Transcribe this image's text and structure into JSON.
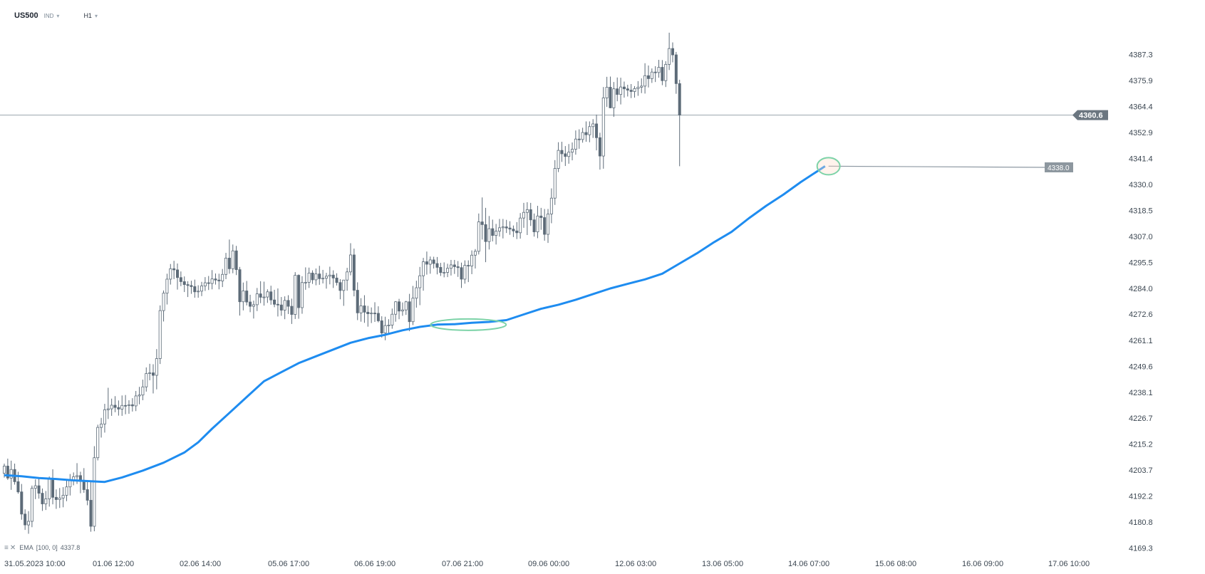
{
  "header": {
    "symbol": "US500",
    "tag": "IND",
    "timeframe": "H1"
  },
  "indicator": {
    "name": "EMA",
    "params": "[100, 0]",
    "value": "4337.8"
  },
  "price_labels": {
    "current": "4360.6",
    "ema_marker": "4338.0"
  },
  "colors": {
    "ema": "#1e8cf0",
    "candle": "#5d6b78",
    "level_line": "#9aa4ad",
    "current_label_bg": "#6b7680",
    "ema_label_bg": "#8d979f",
    "ellipse": "#7dd3a8"
  },
  "chart_data": {
    "type": "candlestick",
    "symbol": "US500",
    "timeframe": "H1",
    "ylim": [
      4166,
      4402
    ],
    "y_ticks": [
      "4387.3",
      "4375.9",
      "4364.4",
      "4352.9",
      "4341.4",
      "4330.0",
      "4318.5",
      "4307.0",
      "4295.5",
      "4284.0",
      "4272.6",
      "4261.1",
      "4249.6",
      "4238.1",
      "4226.7",
      "4215.2",
      "4203.7",
      "4192.2",
      "4180.8",
      "4169.3"
    ],
    "x_ticks": [
      "31.05.2023 10:00",
      "01.06 12:00",
      "02.06 14:00",
      "05.06 17:00",
      "06.06 19:00",
      "07.06 21:00",
      "09.06 00:00",
      "12.06 03:00",
      "13.06 05:00",
      "14.06 07:00",
      "15.06 08:00",
      "16.06 09:00",
      "17.06 10:00"
    ],
    "horizontal_level": 4360.6,
    "ema": {
      "name": "EMA [100, 0]",
      "value": 4337.8,
      "points": [
        [
          0,
          4201.5
        ],
        [
          5,
          4201
        ],
        [
          10,
          4200.2
        ],
        [
          15,
          4199.8
        ],
        [
          20,
          4199.2
        ],
        [
          25,
          4198.8
        ],
        [
          29,
          4198.5
        ],
        [
          34,
          4200.5
        ],
        [
          40,
          4203.5
        ],
        [
          46,
          4207
        ],
        [
          52,
          4211.5
        ],
        [
          56,
          4216
        ],
        [
          60,
          4222
        ],
        [
          65,
          4229
        ],
        [
          70,
          4236
        ],
        [
          75,
          4243
        ],
        [
          80,
          4247
        ],
        [
          85,
          4251
        ],
        [
          90,
          4254
        ],
        [
          95,
          4257
        ],
        [
          100,
          4260
        ],
        [
          105,
          4262
        ],
        [
          110,
          4263.5
        ],
        [
          115,
          4265.5
        ],
        [
          120,
          4267
        ],
        [
          125,
          4268
        ],
        [
          130,
          4268.2
        ],
        [
          135,
          4268.8
        ],
        [
          140,
          4269.2
        ],
        [
          145,
          4270
        ],
        [
          150,
          4272.5
        ],
        [
          155,
          4275
        ],
        [
          160,
          4276.8
        ],
        [
          165,
          4279
        ],
        [
          170,
          4281.5
        ],
        [
          175,
          4284
        ],
        [
          180,
          4286
        ],
        [
          185,
          4288
        ],
        [
          190,
          4290.5
        ],
        [
          195,
          4295
        ],
        [
          200,
          4299.5
        ],
        [
          205,
          4304.5
        ],
        [
          210,
          4309
        ],
        [
          215,
          4315
        ],
        [
          220,
          4320.5
        ],
        [
          225,
          4325.5
        ],
        [
          230,
          4331
        ],
        [
          235,
          4336
        ],
        [
          237,
          4338
        ]
      ]
    },
    "annotations": [
      {
        "type": "ellipse",
        "bar_index": 134,
        "price": 4268
      },
      {
        "type": "ellipse",
        "bar_index": 238,
        "price": 4338
      },
      {
        "type": "ray",
        "start_bar": 238,
        "start_price": 4338,
        "end_price": 4337.5
      }
    ],
    "candles": [
      [
        4202.3,
        4206.6,
        4200.4,
        4205.5
      ],
      [
        4205.5,
        4208.8,
        4199.4,
        4200.2
      ],
      [
        4200.2,
        4207.9,
        4195.0,
        4204.0
      ],
      [
        4204.0,
        4206.6,
        4197.3,
        4198.6
      ],
      [
        4198.6,
        4203.0,
        4193.3,
        4194.1
      ],
      [
        4194.1,
        4197.6,
        4181.8,
        4184.3
      ],
      [
        4184.3,
        4186.4,
        4177.3,
        4179.5
      ],
      [
        4179.5,
        4185.6,
        4175.6,
        4181.1
      ],
      [
        4181.1,
        4196.9,
        4178.5,
        4195.7
      ],
      [
        4195.7,
        4199.6,
        4190.9,
        4196.8
      ],
      [
        4196.8,
        4200.6,
        4191.1,
        4193.5
      ],
      [
        4193.5,
        4195.6,
        4185.7,
        4188.8
      ],
      [
        4188.8,
        4194.5,
        4186.1,
        4191.0
      ],
      [
        4191.0,
        4200.9,
        4187.6,
        4200.0
      ],
      [
        4200.0,
        4204.1,
        4188.6,
        4191.7
      ],
      [
        4191.7,
        4195.2,
        4186.6,
        4190.7
      ],
      [
        4190.7,
        4195.8,
        4187.0,
        4191.4
      ],
      [
        4191.4,
        4196.2,
        4187.3,
        4192.6
      ],
      [
        4192.6,
        4199.7,
        4190.0,
        4196.3
      ],
      [
        4196.3,
        4202.0,
        4192.5,
        4199.1
      ],
      [
        4199.1,
        4202.7,
        4197.0,
        4200.8
      ],
      [
        4200.8,
        4206.8,
        4197.6,
        4201.3
      ],
      [
        4201.3,
        4203.0,
        4193.5,
        4198.7
      ],
      [
        4198.7,
        4204.6,
        4193.7,
        4195.1
      ],
      [
        4195.1,
        4198.6,
        4188.2,
        4190.4
      ],
      [
        4190.4,
        4198.4,
        4176.5,
        4178.9
      ],
      [
        4178.9,
        4214.3,
        4176.7,
        4209.2
      ],
      [
        4209.2,
        4223.8,
        4208.0,
        4222.6
      ],
      [
        4222.6,
        4226.8,
        4218.1,
        4224.1
      ],
      [
        4224.1,
        4233.0,
        4220.3,
        4230.4
      ],
      [
        4230.4,
        4240.1,
        4226.3,
        4230.8
      ],
      [
        4230.8,
        4235.3,
        4227.7,
        4232.4
      ],
      [
        4232.4,
        4236.4,
        4229.3,
        4231.4
      ],
      [
        4231.4,
        4234.5,
        4227.8,
        4230.7
      ],
      [
        4230.7,
        4236.7,
        4227.7,
        4232.3
      ],
      [
        4232.3,
        4236.9,
        4228.4,
        4232.2
      ],
      [
        4232.2,
        4234.6,
        4228.6,
        4232.6
      ],
      [
        4232.6,
        4235.5,
        4229.6,
        4232.1
      ],
      [
        4232.1,
        4238.7,
        4229.8,
        4236.5
      ],
      [
        4236.5,
        4240.5,
        4232.8,
        4236.9
      ],
      [
        4236.9,
        4243.7,
        4234.6,
        4240.5
      ],
      [
        4240.5,
        4249.1,
        4238.4,
        4246.4
      ],
      [
        4246.4,
        4250.7,
        4243.4,
        4246.7
      ],
      [
        4246.7,
        4250.5,
        4237.6,
        4245.6
      ],
      [
        4245.6,
        4257.2,
        4239.4,
        4253.0
      ],
      [
        4253.0,
        4276.5,
        4250.6,
        4274.2
      ],
      [
        4274.2,
        4283.1,
        4269.4,
        4281.9
      ],
      [
        4281.9,
        4290.5,
        4276.9,
        4288.1
      ],
      [
        4288.1,
        4294.8,
        4285.7,
        4292.7
      ],
      [
        4292.7,
        4296.2,
        4288.1,
        4292.2
      ],
      [
        4292.2,
        4295.0,
        4283.5,
        4288.8
      ],
      [
        4288.8,
        4291.5,
        4285.0,
        4287.0
      ],
      [
        4287.0,
        4289.3,
        4282.4,
        4285.7
      ],
      [
        4285.7,
        4287.2,
        4280.2,
        4285.3
      ],
      [
        4285.3,
        4287.4,
        4281.6,
        4284.8
      ],
      [
        4284.8,
        4287.9,
        4279.9,
        4282.5
      ],
      [
        4282.5,
        4285.4,
        4279.9,
        4282.8
      ],
      [
        4282.8,
        4286.9,
        4280.6,
        4285.1
      ],
      [
        4285.1,
        4289.0,
        4282.9,
        4286.5
      ],
      [
        4286.5,
        4289.5,
        4283.3,
        4286.2
      ],
      [
        4286.2,
        4292.1,
        4283.6,
        4288.2
      ],
      [
        4288.2,
        4290.6,
        4285.7,
        4287.7
      ],
      [
        4287.7,
        4290.5,
        4283.6,
        4287.3
      ],
      [
        4287.3,
        4292.6,
        4284.6,
        4290.2
      ],
      [
        4290.2,
        4299.7,
        4288.1,
        4297.4
      ],
      [
        4297.4,
        4305.6,
        4290.5,
        4292.7
      ],
      [
        4292.7,
        4303.4,
        4290.7,
        4300.6
      ],
      [
        4300.6,
        4302.8,
        4289.9,
        4292.3
      ],
      [
        4292.3,
        4293.5,
        4272.0,
        4278.1
      ],
      [
        4278.1,
        4286.6,
        4274.3,
        4282.9
      ],
      [
        4282.9,
        4287.3,
        4276.5,
        4278.0
      ],
      [
        4278.0,
        4281.2,
        4273.5,
        4276.1
      ],
      [
        4276.1,
        4278.6,
        4270.7,
        4276.8
      ],
      [
        4276.8,
        4284.2,
        4274.0,
        4281.6
      ],
      [
        4281.6,
        4287.2,
        4277.5,
        4280.1
      ],
      [
        4280.1,
        4287.0,
        4276.4,
        4280.2
      ],
      [
        4280.2,
        4283.6,
        4277.6,
        4282.5
      ],
      [
        4282.5,
        4285.2,
        4276.8,
        4278.9
      ],
      [
        4278.9,
        4283.4,
        4275.7,
        4277.0
      ],
      [
        4277.0,
        4284.0,
        4271.6,
        4276.7
      ],
      [
        4276.7,
        4280.2,
        4271.9,
        4274.4
      ],
      [
        4274.4,
        4280.5,
        4270.4,
        4278.7
      ],
      [
        4278.7,
        4281.0,
        4272.7,
        4276.1
      ],
      [
        4276.1,
        4279.5,
        4268.3,
        4272.5
      ],
      [
        4272.5,
        4291.2,
        4270.5,
        4289.8
      ],
      [
        4289.8,
        4290.2,
        4270.6,
        4275.5
      ],
      [
        4275.5,
        4289.4,
        4272.8,
        4286.6
      ],
      [
        4286.6,
        4293.3,
        4283.4,
        4286.7
      ],
      [
        4286.7,
        4293.2,
        4284.2,
        4290.8
      ],
      [
        4290.8,
        4292.0,
        4286.0,
        4287.8
      ],
      [
        4287.8,
        4292.8,
        4285.4,
        4290.4
      ],
      [
        4290.4,
        4294.0,
        4285.6,
        4288.3
      ],
      [
        4288.3,
        4292.2,
        4286.2,
        4288.5
      ],
      [
        4288.5,
        4290.9,
        4283.9,
        4289.4
      ],
      [
        4289.4,
        4293.6,
        4285.8,
        4289.9
      ],
      [
        4289.9,
        4292.0,
        4284.2,
        4288.6
      ],
      [
        4288.6,
        4290.7,
        4285.3,
        4286.6
      ],
      [
        4286.6,
        4288.1,
        4279.2,
        4283.1
      ],
      [
        4283.1,
        4286.5,
        4276.3,
        4287.7
      ],
      [
        4287.7,
        4293.1,
        4283.0,
        4291.3
      ],
      [
        4291.3,
        4304.0,
        4289.8,
        4298.8
      ],
      [
        4298.8,
        4301.6,
        4280.5,
        4283.2
      ],
      [
        4283.2,
        4286.7,
        4270.0,
        4273.2
      ],
      [
        4273.2,
        4279.7,
        4269.3,
        4276.3
      ],
      [
        4276.3,
        4281.0,
        4268.8,
        4273.5
      ],
      [
        4273.5,
        4276.3,
        4267.1,
        4272.8
      ],
      [
        4272.8,
        4275.6,
        4268.7,
        4273.1
      ],
      [
        4273.1,
        4277.9,
        4269.2,
        4273.0
      ],
      [
        4273.0,
        4276.1,
        4269.0,
        4269.7
      ],
      [
        4269.7,
        4271.7,
        4262.3,
        4264.3
      ],
      [
        4264.3,
        4271.5,
        4261.1,
        4267.6
      ],
      [
        4267.6,
        4270.4,
        4263.6,
        4267.8
      ],
      [
        4267.8,
        4275.1,
        4266.2,
        4272.6
      ],
      [
        4272.6,
        4278.4,
        4269.3,
        4278.1
      ],
      [
        4278.1,
        4279.4,
        4270.4,
        4274.0
      ],
      [
        4274.0,
        4277.8,
        4271.9,
        4274.5
      ],
      [
        4274.5,
        4278.5,
        4272.3,
        4278.1
      ],
      [
        4278.1,
        4281.6,
        4265.1,
        4269.3
      ],
      [
        4269.3,
        4285.1,
        4267.8,
        4279.7
      ],
      [
        4279.7,
        4287.4,
        4275.5,
        4284.3
      ],
      [
        4284.3,
        4293.5,
        4276.6,
        4289.6
      ],
      [
        4289.6,
        4297.5,
        4283.0,
        4295.8
      ],
      [
        4295.8,
        4300.3,
        4290.1,
        4294.7
      ],
      [
        4294.7,
        4298.1,
        4290.5,
        4296.6
      ],
      [
        4296.6,
        4298.0,
        4292.8,
        4295.0
      ],
      [
        4295.0,
        4297.9,
        4290.2,
        4293.3
      ],
      [
        4293.3,
        4295.3,
        4289.5,
        4291.0
      ],
      [
        4291.0,
        4295.5,
        4288.9,
        4291.1
      ],
      [
        4291.1,
        4294.9,
        4289.0,
        4292.9
      ],
      [
        4292.9,
        4296.6,
        4289.7,
        4294.4
      ],
      [
        4294.4,
        4296.6,
        4290.4,
        4293.6
      ],
      [
        4293.6,
        4296.1,
        4289.1,
        4293.2
      ],
      [
        4293.2,
        4295.4,
        4284.2,
        4288.1
      ],
      [
        4288.1,
        4296.4,
        4286.1,
        4294.2
      ],
      [
        4294.2,
        4296.4,
        4286.8,
        4293.9
      ],
      [
        4293.9,
        4300.8,
        4290.3,
        4298.7
      ],
      [
        4298.7,
        4301.4,
        4292.8,
        4300.4
      ],
      [
        4300.4,
        4317.1,
        4299.0,
        4313.4
      ],
      [
        4313.4,
        4324.2,
        4305.6,
        4312.2
      ],
      [
        4312.2,
        4319.6,
        4295.6,
        4304.7
      ],
      [
        4304.7,
        4316.0,
        4301.2,
        4310.4
      ],
      [
        4310.4,
        4314.4,
        4304.8,
        4307.4
      ],
      [
        4307.4,
        4312.5,
        4303.4,
        4309.3
      ],
      [
        4309.3,
        4314.7,
        4306.9,
        4310.8
      ],
      [
        4310.8,
        4314.7,
        4306.1,
        4311.2
      ],
      [
        4311.2,
        4314.3,
        4308.5,
        4310.7
      ],
      [
        4310.7,
        4313.7,
        4307.7,
        4310.2
      ],
      [
        4310.2,
        4311.8,
        4306.7,
        4309.4
      ],
      [
        4309.4,
        4313.3,
        4305.8,
        4308.6
      ],
      [
        4308.6,
        4317.3,
        4306.0,
        4315.1
      ],
      [
        4315.1,
        4321.8,
        4310.8,
        4317.6
      ],
      [
        4317.6,
        4322.1,
        4307.6,
        4318.8
      ],
      [
        4318.8,
        4321.8,
        4311.6,
        4314.3
      ],
      [
        4314.3,
        4317.1,
        4306.9,
        4309.0
      ],
      [
        4309.0,
        4320.5,
        4306.2,
        4316.0
      ],
      [
        4316.0,
        4319.6,
        4309.9,
        4315.3
      ],
      [
        4315.3,
        4319.1,
        4305.1,
        4307.9
      ],
      [
        4307.9,
        4319.1,
        4304.1,
        4316.9
      ],
      [
        4316.9,
        4328.2,
        4312.8,
        4323.9
      ],
      [
        4323.9,
        4340.7,
        4320.9,
        4337.0
      ],
      [
        4337.0,
        4348.6,
        4335.4,
        4345.0
      ],
      [
        4345.0,
        4348.8,
        4339.9,
        4343.5
      ],
      [
        4343.5,
        4346.9,
        4338.1,
        4342.3
      ],
      [
        4342.3,
        4347.8,
        4339.1,
        4344.2
      ],
      [
        4344.2,
        4348.5,
        4340.6,
        4345.5
      ],
      [
        4345.5,
        4353.8,
        4343.1,
        4350.0
      ],
      [
        4350.0,
        4354.3,
        4345.7,
        4349.8
      ],
      [
        4349.8,
        4355.0,
        4348.4,
        4352.9
      ],
      [
        4352.9,
        4357.8,
        4348.8,
        4351.9
      ],
      [
        4351.9,
        4357.8,
        4348.6,
        4355.5
      ],
      [
        4355.5,
        4358.8,
        4350.5,
        4356.7
      ],
      [
        4356.7,
        4360.8,
        4345.0,
        4350.6
      ],
      [
        4350.6,
        4352.8,
        4336.5,
        4342.5
      ],
      [
        4342.5,
        4373.0,
        4336.9,
        4368.2
      ],
      [
        4368.2,
        4377.5,
        4364.2,
        4372.9
      ],
      [
        4372.9,
        4377.6,
        4363.6,
        4363.8
      ],
      [
        4363.8,
        4375.2,
        4359.8,
        4372.2
      ],
      [
        4372.2,
        4377.2,
        4366.7,
        4369.7
      ],
      [
        4369.7,
        4377.1,
        4365.3,
        4373.0
      ],
      [
        4373.0,
        4375.4,
        4368.3,
        4372.2
      ],
      [
        4372.2,
        4374.0,
        4368.8,
        4371.6
      ],
      [
        4371.6,
        4374.3,
        4368.1,
        4371.0
      ],
      [
        4371.0,
        4373.4,
        4368.3,
        4372.3
      ],
      [
        4372.3,
        4375.6,
        4369.1,
        4372.9
      ],
      [
        4372.9,
        4376.8,
        4370.3,
        4373.4
      ],
      [
        4373.4,
        4383.5,
        4370.1,
        4378.0
      ],
      [
        4378.0,
        4382.5,
        4372.8,
        4376.7
      ],
      [
        4376.7,
        4381.2,
        4374.8,
        4379.6
      ],
      [
        4379.6,
        4382.2,
        4375.2,
        4379.4
      ],
      [
        4379.4,
        4385.0,
        4377.1,
        4381.7
      ],
      [
        4381.7,
        4384.9,
        4373.8,
        4375.8
      ],
      [
        4375.8,
        4384.4,
        4373.0,
        4383.0
      ],
      [
        4383.0,
        4397.0,
        4380.5,
        4390.0
      ],
      [
        4390.0,
        4392.7,
        4383.9,
        4387.2
      ],
      [
        4387.2,
        4388.5,
        4370.0,
        4374.5
      ],
      [
        4374.5,
        4376.2,
        4338.0,
        4360.6
      ]
    ]
  }
}
